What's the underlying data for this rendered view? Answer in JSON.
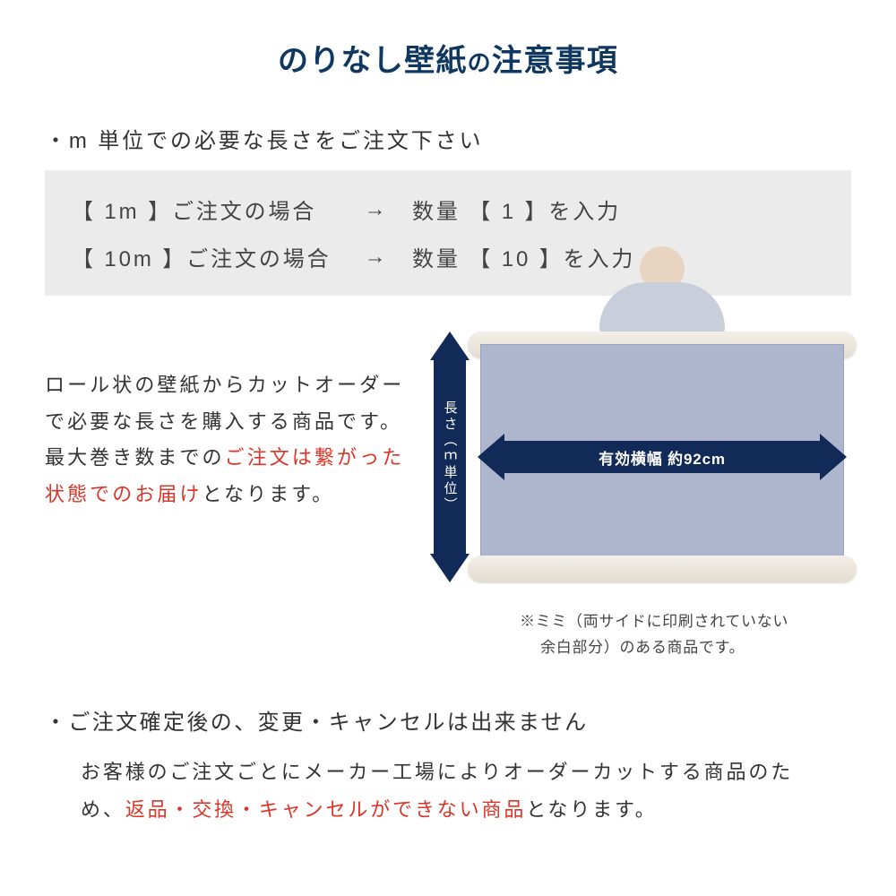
{
  "title_prefix": "のりなし壁紙",
  "title_no": "の",
  "title_suffix": "注意事項",
  "title_color": "#0f3760",
  "bullet1": "・m 単位での必要な長さをご注文下さい",
  "order_examples": {
    "row1": {
      "left": "【 1m 】ご注文の場合",
      "arrow": "→",
      "right": "数量 【 1 】を入力"
    },
    "row2": {
      "left": "【 10m 】ご注文の場合",
      "arrow": "→",
      "right": "数量 【 10 】を入力"
    }
  },
  "mid_paragraph": {
    "p1": "ロール状の壁紙からカットオーダーで必要な長さを購入する商品です。最大巻き数までの",
    "p1_red": "ご注文は繋がった状態でのお届け",
    "p1_tail": "となります。"
  },
  "diagram": {
    "vertical_label": "長さ（ｍ単位）",
    "horizontal_label": "有効横幅 約92cm",
    "arrow_color": "#122a57",
    "paper_color": "#aeb6ce"
  },
  "mimi_note_l1": "※ミミ（両サイドに印刷されていない",
  "mimi_note_l2": "　 余白部分）のある商品です。",
  "bullet2": "・ご注文確定後の、変更・キャンセルは出来ません",
  "bottom": {
    "p1": "お客様のご注文ごとにメーカー工場によりオーダーカットする商品のため、",
    "p1_red": "返品・交換・キャンセルができない商品",
    "p1_tail": "となります。"
  },
  "red_color": "#d9362a"
}
